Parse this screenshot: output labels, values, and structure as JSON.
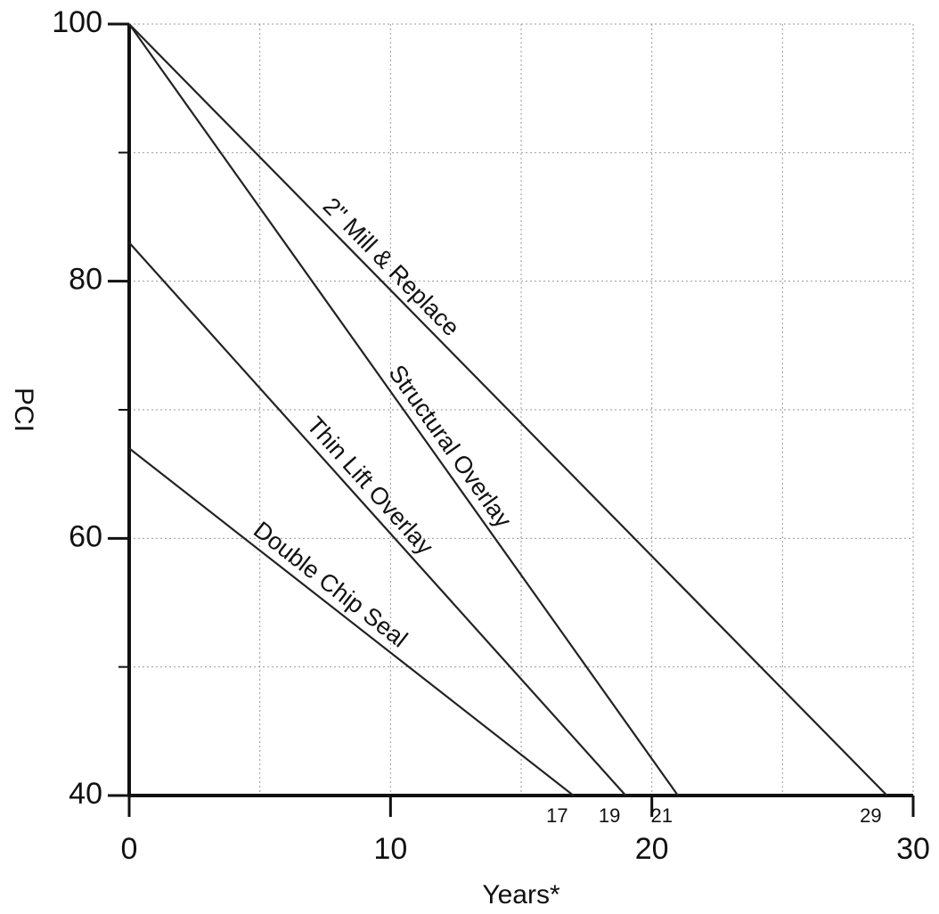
{
  "chart_data": {
    "type": "line",
    "x_label": "Years*",
    "y_label": "PCI",
    "xlim": [
      0,
      30
    ],
    "ylim": [
      40,
      100
    ],
    "xticks": [
      0,
      10,
      20,
      30
    ],
    "yticks": [
      40,
      60,
      80,
      100
    ],
    "x_minor": [
      5,
      15,
      25
    ],
    "y_minor": [
      50,
      70,
      90
    ],
    "grid": true,
    "series": [
      {
        "name": "2\" Mill & Replace",
        "color": "#222222",
        "x": [
          0,
          29
        ],
        "values": [
          100,
          40
        ]
      },
      {
        "name": "Structural Overlay",
        "color": "#222222",
        "x": [
          0,
          21
        ],
        "values": [
          100,
          40
        ]
      },
      {
        "name": "Thin Lift Overlay",
        "color": "#222222",
        "x": [
          0,
          19
        ],
        "values": [
          83,
          40
        ]
      },
      {
        "name": "Double Chip Seal",
        "color": "#222222",
        "x": [
          0,
          17
        ],
        "values": [
          67,
          40
        ]
      }
    ]
  }
}
